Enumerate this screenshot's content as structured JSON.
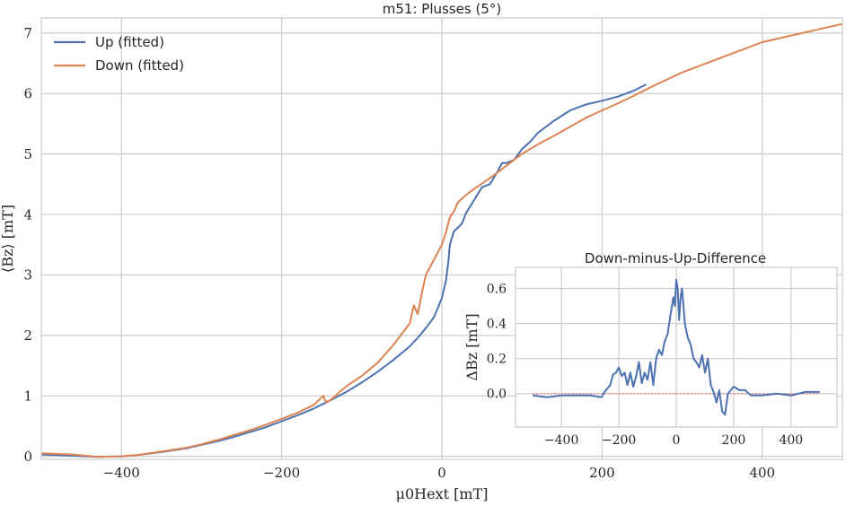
{
  "chart_data": [
    {
      "type": "line",
      "title": "m51: Plusses (5°)",
      "xlabel": "μ0Hext [mT]",
      "ylabel": "⟨Bz⟩ [mT]",
      "xlim": [
        -500,
        500
      ],
      "ylim": [
        -0.05,
        7.25
      ],
      "xticks": [
        -400,
        -200,
        0,
        200,
        400
      ],
      "xtick_labels": [
        "−400",
        "−200",
        "0",
        "200",
        "400"
      ],
      "yticks": [
        0,
        1,
        2,
        3,
        4,
        5,
        6,
        7
      ],
      "ytick_labels": [
        "0",
        "1",
        "2",
        "3",
        "4",
        "5",
        "6",
        "7"
      ],
      "grid": true,
      "legend": "top-left",
      "series": [
        {
          "name": "Up (fitted)",
          "color": "#4c72b0",
          "x": [
            -500,
            -460,
            -430,
            -400,
            -380,
            -350,
            -320,
            -300,
            -280,
            -260,
            -240,
            -220,
            -200,
            -180,
            -160,
            -140,
            -120,
            -100,
            -80,
            -60,
            -40,
            -30,
            -20,
            -10,
            -5,
            0,
            5,
            8,
            10,
            15,
            20,
            25,
            30,
            40,
            50,
            60,
            70,
            75,
            80,
            90,
            100,
            110,
            120,
            140,
            160,
            180,
            200,
            220,
            240,
            255
          ],
          "y": [
            0.03,
            0.01,
            -0.01,
            0.0,
            0.02,
            0.07,
            0.13,
            0.19,
            0.25,
            0.32,
            0.4,
            0.48,
            0.58,
            0.68,
            0.79,
            0.92,
            1.06,
            1.22,
            1.4,
            1.6,
            1.82,
            1.96,
            2.12,
            2.3,
            2.45,
            2.62,
            2.9,
            3.2,
            3.5,
            3.72,
            3.78,
            3.85,
            4.02,
            4.23,
            4.45,
            4.5,
            4.72,
            4.85,
            4.85,
            4.9,
            5.08,
            5.2,
            5.35,
            5.55,
            5.72,
            5.82,
            5.88,
            5.95,
            6.05,
            6.15
          ]
        },
        {
          "name": "Down (fitted)",
          "color": "#dd8452",
          "x": [
            -500,
            -460,
            -430,
            -400,
            -380,
            -350,
            -320,
            -300,
            -280,
            -260,
            -240,
            -220,
            -200,
            -180,
            -160,
            -148,
            -145,
            -140,
            -120,
            -100,
            -80,
            -60,
            -40,
            -35,
            -30,
            -25,
            -20,
            -10,
            0,
            5,
            10,
            15,
            20,
            30,
            40,
            60,
            80,
            100,
            120,
            140,
            160,
            180,
            200,
            230,
            260,
            300,
            350,
            400,
            450,
            500
          ],
          "y": [
            0.05,
            0.03,
            -0.01,
            0.0,
            0.02,
            0.08,
            0.14,
            0.2,
            0.27,
            0.35,
            0.43,
            0.52,
            0.62,
            0.72,
            0.85,
            1.0,
            0.9,
            0.92,
            1.15,
            1.33,
            1.55,
            1.85,
            2.2,
            2.5,
            2.35,
            2.7,
            3.0,
            3.25,
            3.5,
            3.7,
            3.95,
            4.05,
            4.2,
            4.32,
            4.42,
            4.6,
            4.8,
            5.0,
            5.16,
            5.3,
            5.45,
            5.6,
            5.72,
            5.9,
            6.1,
            6.35,
            6.6,
            6.85,
            7.0,
            7.15
          ]
        }
      ]
    },
    {
      "type": "line",
      "title": "Down-minus-Up-Difference",
      "xlabel": "",
      "ylabel": "ΔBz [mT]",
      "xlim": [
        -560,
        560
      ],
      "ylim": [
        -0.19,
        0.72
      ],
      "xticks": [
        -400,
        -200,
        0,
        200,
        400
      ],
      "xtick_labels": [
        "−400",
        "−200",
        "0",
        "200",
        "400"
      ],
      "yticks": [
        0.0,
        0.2,
        0.4,
        0.6
      ],
      "ytick_labels": [
        "0.0",
        "0.2",
        "0.4",
        "0.6"
      ],
      "grid": true,
      "zero_line_color": "#e06060",
      "series": [
        {
          "name": "",
          "color": "#4c72b0",
          "x": [
            -500,
            -450,
            -400,
            -350,
            -300,
            -260,
            -250,
            -230,
            -220,
            -210,
            -200,
            -190,
            -180,
            -170,
            -160,
            -150,
            -140,
            -130,
            -120,
            -110,
            -100,
            -90,
            -80,
            -70,
            -60,
            -50,
            -40,
            -30,
            -20,
            -10,
            -5,
            0,
            5,
            10,
            15,
            20,
            30,
            40,
            50,
            60,
            70,
            80,
            90,
            100,
            110,
            120,
            130,
            140,
            150,
            160,
            170,
            180,
            190,
            200,
            220,
            240,
            260,
            300,
            350,
            400,
            450,
            500
          ],
          "y": [
            -0.01,
            -0.02,
            -0.01,
            -0.01,
            -0.01,
            -0.02,
            0.01,
            0.05,
            0.11,
            0.12,
            0.15,
            0.1,
            0.12,
            0.05,
            0.12,
            0.04,
            0.1,
            0.18,
            0.06,
            0.12,
            0.08,
            0.18,
            0.05,
            0.2,
            0.25,
            0.22,
            0.3,
            0.34,
            0.45,
            0.55,
            0.5,
            0.65,
            0.6,
            0.42,
            0.55,
            0.6,
            0.4,
            0.32,
            0.28,
            0.2,
            0.18,
            0.15,
            0.22,
            0.12,
            0.2,
            0.05,
            0.01,
            -0.05,
            0.02,
            -0.1,
            -0.12,
            0.0,
            0.02,
            0.04,
            0.02,
            0.02,
            -0.01,
            -0.01,
            0.0,
            -0.01,
            0.01,
            0.01
          ]
        }
      ]
    }
  ]
}
